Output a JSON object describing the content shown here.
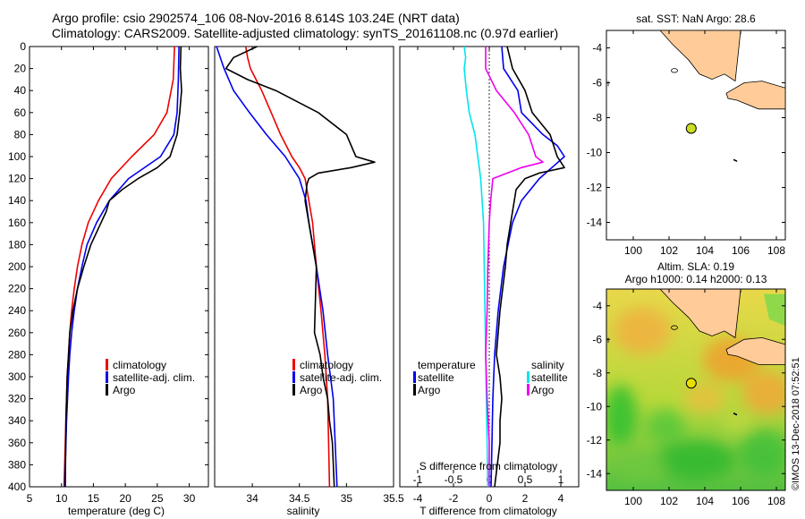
{
  "title": {
    "line1": "Argo profile: csio 2902574_106 08-Nov-2016 8.614S 103.24E (NRT data)",
    "line2": "Climatology: CARS2009. Satellite-adjusted climatology: synTS_20161108.nc (0.97d earlier)"
  },
  "watermark": "©IMOS 13-Dec-2018 07:52:51",
  "colors": {
    "climatology": "#ee0000",
    "satellite": "#0000ee",
    "argo": "#000000",
    "sal_satellite": "#00e5ee",
    "sal_argo": "#ee00ee",
    "land": "#ffcc99",
    "track": "#000000"
  },
  "chart_data": [
    {
      "id": "temperature",
      "type": "line",
      "xlabel": "temperature (deg C)",
      "ylabel": "",
      "xlim": [
        5,
        33
      ],
      "ylim": [
        400,
        0
      ],
      "xticks": [
        5,
        10,
        15,
        20,
        25,
        30
      ],
      "yticks": [
        0,
        20,
        40,
        60,
        80,
        100,
        120,
        140,
        160,
        180,
        200,
        220,
        240,
        260,
        280,
        300,
        320,
        340,
        360,
        380,
        400
      ],
      "legend": [
        "climatology",
        "satellite-adj. clim.",
        "Argo"
      ],
      "legend_position": "lower-right",
      "series": [
        {
          "name": "climatology",
          "color": "#ee0000",
          "depth": [
            0,
            30,
            60,
            80,
            100,
            120,
            140,
            160,
            180,
            200,
            220,
            240,
            260,
            280,
            300,
            340,
            400
          ],
          "values": [
            27.7,
            27.5,
            26.5,
            24.5,
            21.0,
            17.8,
            15.8,
            14.2,
            13.2,
            12.5,
            12.0,
            11.6,
            11.3,
            11.1,
            10.9,
            10.7,
            10.4
          ]
        },
        {
          "name": "satellite-adj. clim.",
          "color": "#0000ee",
          "depth": [
            0,
            30,
            60,
            80,
            100,
            120,
            140,
            160,
            180,
            200,
            220,
            240,
            260,
            280,
            300,
            340,
            400
          ],
          "values": [
            28.4,
            28.3,
            28.1,
            27.6,
            25.5,
            20.5,
            17.5,
            15.5,
            14.0,
            13.2,
            12.5,
            12.0,
            11.6,
            11.3,
            11.1,
            10.8,
            10.5
          ]
        },
        {
          "name": "Argo",
          "color": "#000000",
          "depth": [
            0,
            20,
            40,
            60,
            80,
            100,
            110,
            120,
            130,
            140,
            150,
            160,
            180,
            200,
            220,
            240,
            260,
            280,
            300,
            340,
            400
          ],
          "values": [
            28.7,
            28.6,
            28.8,
            28.5,
            28.1,
            27.0,
            25.0,
            22.0,
            19.5,
            17.5,
            17.0,
            16.2,
            14.6,
            13.5,
            12.5,
            11.8,
            11.3,
            11.1,
            10.9,
            10.7,
            10.6
          ]
        }
      ]
    },
    {
      "id": "salinity",
      "type": "line",
      "xlabel": "salinity",
      "ylabel": "",
      "xlim": [
        33.6,
        35.5
      ],
      "ylim": [
        400,
        0
      ],
      "xticks": [
        34,
        34.5,
        35,
        35.5
      ],
      "xtick_labels": [
        "34",
        "34.5",
        "35",
        "35.5"
      ],
      "legend": [
        "climatology",
        "satellite-adj. clim.",
        "Argo"
      ],
      "legend_position": "lower-right",
      "series": [
        {
          "name": "climatology",
          "color": "#ee0000",
          "depth": [
            0,
            10,
            20,
            40,
            60,
            80,
            100,
            110,
            120,
            130,
            140,
            160,
            200,
            240,
            280,
            320,
            360,
            400
          ],
          "values": [
            33.93,
            33.95,
            33.98,
            34.1,
            34.2,
            34.3,
            34.42,
            34.5,
            34.56,
            34.58,
            34.6,
            34.64,
            34.68,
            34.73,
            34.77,
            34.8,
            34.81,
            34.82
          ]
        },
        {
          "name": "satellite-adj. clim.",
          "color": "#0000ee",
          "depth": [
            0,
            20,
            40,
            60,
            80,
            100,
            120,
            140,
            160,
            180,
            200,
            240,
            280,
            320,
            360,
            400
          ],
          "values": [
            33.62,
            33.7,
            33.8,
            33.97,
            34.15,
            34.35,
            34.5,
            34.57,
            34.6,
            34.64,
            34.68,
            34.75,
            34.8,
            34.86,
            34.88,
            34.9
          ]
        },
        {
          "name": "Argo",
          "color": "#000000",
          "depth": [
            0,
            10,
            20,
            30,
            40,
            60,
            80,
            100,
            105,
            110,
            115,
            120,
            125,
            140,
            160,
            200,
            260,
            280,
            300,
            320,
            340,
            360,
            400
          ],
          "values": [
            34.05,
            33.8,
            33.72,
            33.95,
            34.25,
            34.7,
            35.0,
            35.1,
            35.3,
            35.05,
            34.7,
            34.6,
            34.58,
            34.56,
            34.6,
            34.68,
            34.66,
            34.72,
            34.75,
            34.8,
            34.82,
            34.85,
            34.87
          ]
        }
      ]
    },
    {
      "id": "difference",
      "type": "line",
      "xlabel": "T difference from climatology",
      "top_xlabel": "S difference from climatology",
      "xlim": [
        -5,
        5
      ],
      "ylim": [
        400,
        0
      ],
      "xticks": [
        -4,
        -2,
        0,
        2,
        4
      ],
      "top_xlim": [
        -1.25,
        1.25
      ],
      "top_xticks": [
        -1,
        -0.5,
        0,
        0.5,
        1
      ],
      "top_xtick_labels": [
        "-1",
        "-0.5",
        "0",
        "0.5",
        "1"
      ],
      "legend_temperature": {
        "heading": "temperature",
        "items": [
          "satellite",
          "Argo"
        ]
      },
      "legend_salinity": {
        "heading": "salinity",
        "items": [
          "satellite",
          "Argo"
        ]
      },
      "series": [
        {
          "name": "temperature satellite",
          "axis": "T",
          "color": "#0000ee",
          "depth": [
            0,
            20,
            40,
            60,
            80,
            90,
            100,
            110,
            120,
            140,
            160,
            200,
            240,
            280,
            320,
            360,
            400
          ],
          "values": [
            0.7,
            0.8,
            1.6,
            1.8,
            3.0,
            3.8,
            4.2,
            3.5,
            2.8,
            1.8,
            1.3,
            0.8,
            0.5,
            0.3,
            0.2,
            0.15,
            0.1
          ]
        },
        {
          "name": "temperature Argo",
          "axis": "T",
          "color": "#000000",
          "depth": [
            0,
            20,
            40,
            60,
            80,
            100,
            110,
            115,
            120,
            130,
            140,
            160,
            180,
            200,
            240,
            280,
            300,
            320,
            340,
            360,
            400
          ],
          "values": [
            1.0,
            1.3,
            2.0,
            2.4,
            3.4,
            3.8,
            4.2,
            2.8,
            2.0,
            1.5,
            1.4,
            1.2,
            1.0,
            0.9,
            0.6,
            0.4,
            0.6,
            0.7,
            0.6,
            0.6,
            0.3
          ]
        },
        {
          "name": "salinity satellite",
          "axis": "S",
          "color": "#00e5ee",
          "depth": [
            0,
            10,
            20,
            40,
            60,
            80,
            100,
            120,
            140,
            160,
            200,
            240,
            280,
            320,
            360,
            400
          ],
          "values": [
            -0.35,
            -0.33,
            -0.35,
            -0.32,
            -0.28,
            -0.2,
            -0.16,
            -0.12,
            -0.1,
            -0.08,
            -0.07,
            -0.06,
            -0.05,
            -0.04,
            -0.03,
            -0.02
          ]
        },
        {
          "name": "salinity Argo",
          "axis": "S",
          "color": "#ee00ee",
          "depth": [
            0,
            20,
            40,
            60,
            80,
            100,
            105,
            110,
            120,
            140,
            160,
            200,
            240,
            280,
            320,
            360,
            400
          ],
          "values": [
            -0.05,
            -0.05,
            0.1,
            0.35,
            0.55,
            0.65,
            0.75,
            0.45,
            0.05,
            0.02,
            0.0,
            -0.02,
            -0.03,
            -0.05,
            -0.03,
            0.0,
            0.0
          ]
        }
      ]
    },
    {
      "id": "sst-map",
      "type": "scatter",
      "title": "sat. SST: NaN Argo: 28.6",
      "xlim": [
        98.5,
        108.5
      ],
      "ylim": [
        -15,
        -3
      ],
      "xticks": [
        100,
        102,
        104,
        106,
        108
      ],
      "yticks": [
        -4,
        -6,
        -8,
        -10,
        -12,
        -14
      ],
      "background": "no data",
      "points": [
        {
          "name": "Argo float",
          "lon": 103.24,
          "lat": -8.614,
          "color": "#ccdd22"
        }
      ]
    },
    {
      "id": "sla-map",
      "type": "heatmap",
      "title_line1": "Altim. SLA: 0.19",
      "title_line2": "Argo h1000: 0.14 h2000: 0.13",
      "xlim": [
        98.5,
        108.5
      ],
      "ylim": [
        -15,
        -3
      ],
      "xticks": [
        100,
        102,
        104,
        106,
        108
      ],
      "yticks": [
        -4,
        -6,
        -8,
        -10,
        -12,
        -14
      ],
      "points": [
        {
          "name": "Argo float",
          "lon": 103.24,
          "lat": -8.614,
          "color": "#e8dd00"
        }
      ]
    }
  ]
}
